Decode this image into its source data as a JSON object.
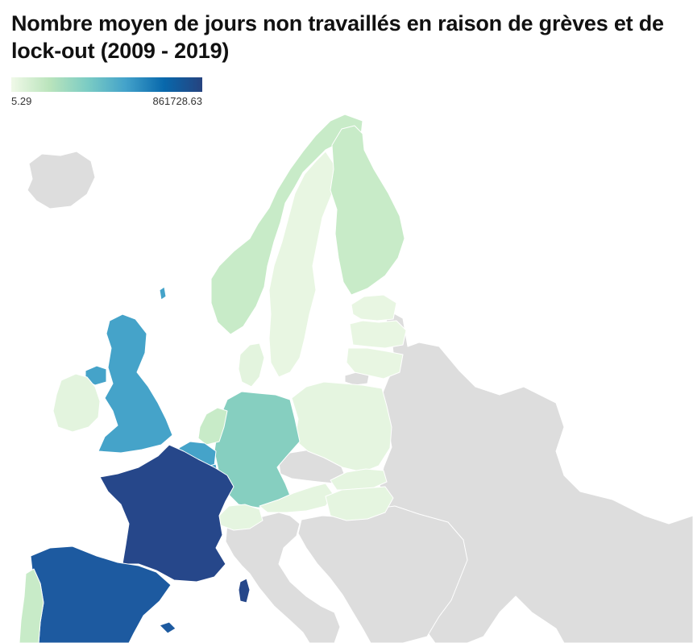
{
  "title": "Nombre moyen de jours non travaillés en raison de grèves et de lock-out (2009 - 2019)",
  "legend": {
    "min_label": "5.29",
    "max_label": "861728.63",
    "min": 5.29,
    "max": 861728.63,
    "scale_colors": [
      "#f0f9e8",
      "#bae4bc",
      "#7bccc4",
      "#43a2ca",
      "#0868ac",
      "#26437f"
    ]
  },
  "no_data_color": "#dddddd",
  "countries": [
    {
      "id": "france",
      "color": "#26478a"
    },
    {
      "id": "spain",
      "color": "#1d5aa0"
    },
    {
      "id": "balearic",
      "color": "#1d5aa0"
    },
    {
      "id": "corsica",
      "color": "#26478a"
    },
    {
      "id": "uk",
      "color": "#45a3c9"
    },
    {
      "id": "northern-ireland",
      "color": "#45a3c9"
    },
    {
      "id": "shetland",
      "color": "#45a3c9"
    },
    {
      "id": "belgium",
      "color": "#45a3c9"
    },
    {
      "id": "germany",
      "color": "#86cfc0"
    },
    {
      "id": "norway",
      "color": "#c8ebc8"
    },
    {
      "id": "finland",
      "color": "#c8ebc8"
    },
    {
      "id": "netherlands",
      "color": "#c8ebc8"
    },
    {
      "id": "portugal",
      "color": "#c8ebc8"
    },
    {
      "id": "denmark",
      "color": "#e3f4de"
    },
    {
      "id": "sweden",
      "color": "#e8f6e2"
    },
    {
      "id": "ireland",
      "color": "#e3f4de"
    },
    {
      "id": "poland",
      "color": "#e5f5e0"
    },
    {
      "id": "estonia",
      "color": "#e8f6e2"
    },
    {
      "id": "latvia",
      "color": "#e8f6e2"
    },
    {
      "id": "lithuania",
      "color": "#e8f6e2"
    },
    {
      "id": "austria",
      "color": "#e5f5e0"
    },
    {
      "id": "slovakia",
      "color": "#e5f5e0"
    },
    {
      "id": "switzerland",
      "color": "#e5f5e0"
    },
    {
      "id": "hungary",
      "color": "#e5f5e0"
    },
    {
      "id": "luxembourg",
      "color": "#45a3c9"
    }
  ]
}
